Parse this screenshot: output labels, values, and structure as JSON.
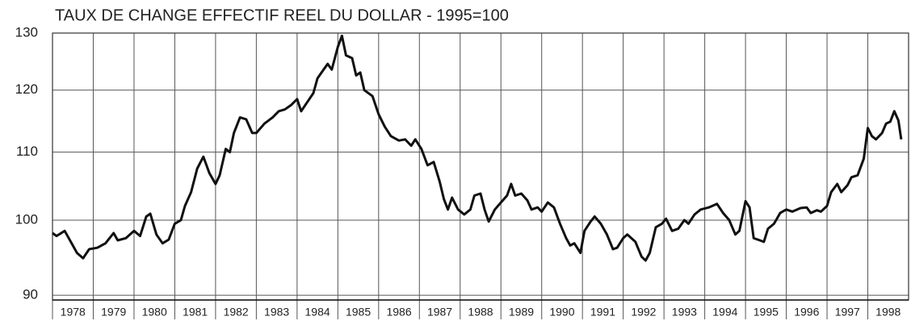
{
  "chart_data": {
    "type": "line",
    "title": "TAUX DE CHANGE EFFECTIF REEL DU DOLLAR - 1995=100",
    "x": [
      1978.0,
      1978.1,
      1978.3,
      1978.5,
      1978.6,
      1978.75,
      1978.9,
      1979.1,
      1979.3,
      1979.5,
      1979.6,
      1979.8,
      1980.0,
      1980.15,
      1980.3,
      1980.4,
      1980.55,
      1980.7,
      1980.85,
      1981.0,
      1981.15,
      1981.25,
      1981.4,
      1981.55,
      1981.7,
      1981.85,
      1982.0,
      1982.1,
      1982.25,
      1982.35,
      1982.45,
      1982.6,
      1982.75,
      1982.9,
      1983.0,
      1983.2,
      1983.4,
      1983.55,
      1983.7,
      1983.85,
      1984.0,
      1984.1,
      1984.25,
      1984.4,
      1984.5,
      1984.65,
      1984.75,
      1984.85,
      1985.0,
      1985.1,
      1985.2,
      1985.35,
      1985.45,
      1985.55,
      1985.65,
      1985.85,
      1986.0,
      1986.15,
      1986.3,
      1986.5,
      1986.65,
      1986.8,
      1986.9,
      1987.05,
      1987.2,
      1987.35,
      1987.5,
      1987.6,
      1987.7,
      1987.8,
      1987.95,
      1988.1,
      1988.25,
      1988.35,
      1988.5,
      1988.6,
      1988.7,
      1988.85,
      1989.0,
      1989.15,
      1989.25,
      1989.35,
      1989.5,
      1989.65,
      1989.75,
      1989.9,
      1990.0,
      1990.15,
      1990.3,
      1990.45,
      1990.6,
      1990.7,
      1990.8,
      1990.95,
      1991.05,
      1991.2,
      1991.3,
      1991.45,
      1991.6,
      1991.75,
      1991.85,
      1992.0,
      1992.1,
      1992.3,
      1992.45,
      1992.55,
      1992.65,
      1992.8,
      1992.95,
      1993.05,
      1993.2,
      1993.35,
      1993.5,
      1993.6,
      1993.75,
      1993.9,
      1994.1,
      1994.3,
      1994.45,
      1994.6,
      1994.75,
      1994.85,
      1995.0,
      1995.1,
      1995.2,
      1995.35,
      1995.45,
      1995.55,
      1995.7,
      1995.85,
      1996.0,
      1996.15,
      1996.35,
      1996.5,
      1996.6,
      1996.75,
      1996.85,
      1997.0,
      1997.1,
      1997.25,
      1997.35,
      1997.5,
      1997.6,
      1997.75,
      1997.9,
      1998.0,
      1998.1,
      1998.2,
      1998.35,
      1998.45,
      1998.55,
      1998.65,
      1998.75,
      1998.82
    ],
    "values": [
      98.2,
      97.8,
      98.5,
      96.5,
      95.5,
      94.8,
      96,
      96.2,
      96.8,
      98.2,
      97.2,
      97.5,
      98.5,
      97.8,
      100.5,
      100.9,
      98,
      96.8,
      97.3,
      99.5,
      100,
      102,
      104,
      107.5,
      109.3,
      106.8,
      105.2,
      106.5,
      110.5,
      110,
      113,
      115.5,
      115.2,
      113,
      113,
      114.5,
      115.5,
      116.5,
      116.8,
      117.5,
      118.5,
      116.5,
      118,
      119.5,
      122,
      123.5,
      124.5,
      123.5,
      127.5,
      129.5,
      126,
      125.5,
      122.5,
      123,
      120,
      119,
      116,
      114,
      112.5,
      111.8,
      112,
      111,
      112,
      110.5,
      108,
      108.5,
      105.5,
      103,
      101.5,
      103.2,
      101.5,
      100.8,
      101.5,
      103.5,
      103.8,
      101.5,
      99.8,
      101.5,
      102.5,
      103.5,
      105.2,
      103.5,
      103.8,
      102.8,
      101.5,
      101.8,
      101.2,
      102.5,
      101.8,
      99.5,
      97.5,
      96.5,
      96.8,
      95.5,
      98.5,
      99.8,
      100.5,
      99.5,
      98,
      96,
      96.2,
      97.5,
      98,
      97,
      95,
      94.5,
      95.5,
      99,
      99.5,
      100.2,
      98.5,
      98.8,
      100,
      99.5,
      100.8,
      101.5,
      101.8,
      102.3,
      101,
      100,
      98,
      98.5,
      102.7,
      101.8,
      97.5,
      97.2,
      97,
      98.8,
      99.5,
      101,
      101.5,
      101.2,
      101.7,
      101.8,
      101,
      101.4,
      101.2,
      102,
      104,
      105.2,
      104,
      105,
      106.2,
      106.5,
      109,
      113.8,
      112.5,
      112,
      113,
      114.5,
      114.8,
      116.5,
      115,
      112
    ],
    "color": "#111111",
    "xlim": [
      1978,
      1999
    ],
    "xticks": [
      1978,
      1979,
      1980,
      1981,
      1982,
      1983,
      1984,
      1985,
      1986,
      1987,
      1988,
      1989,
      1990,
      1991,
      1992,
      1993,
      1994,
      1995,
      1996,
      1997,
      1998
    ],
    "ylim": [
      89.4,
      130
    ],
    "yticks": [
      90,
      100,
      110,
      120,
      130
    ],
    "log_y": true,
    "grid": true
  }
}
